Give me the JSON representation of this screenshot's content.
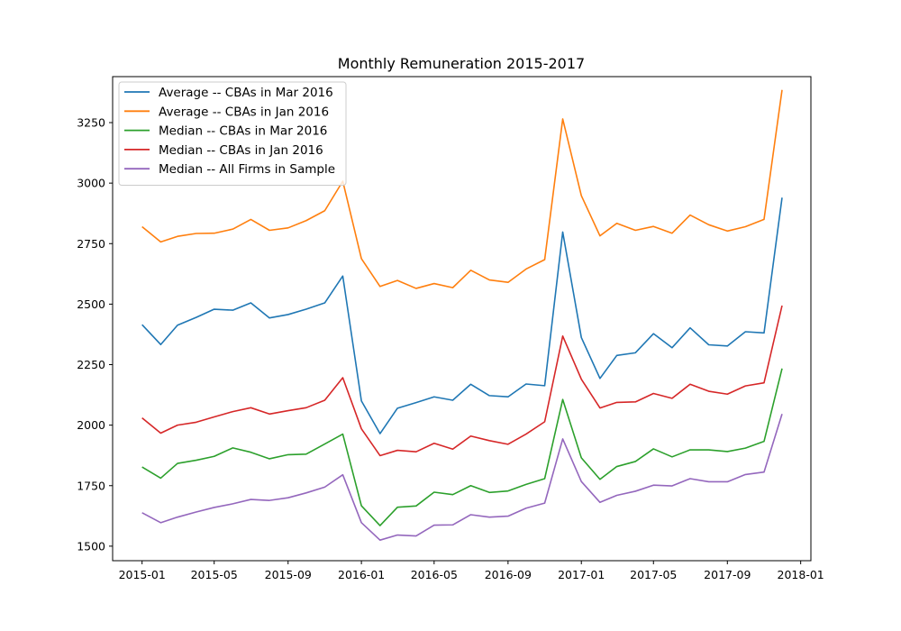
{
  "chart_data": {
    "type": "line",
    "title": "Monthly Remuneration 2015-2017",
    "xlabel": "",
    "ylabel": "",
    "x": [
      "2015-01",
      "2015-02",
      "2015-03",
      "2015-04",
      "2015-05",
      "2015-06",
      "2015-07",
      "2015-08",
      "2015-09",
      "2015-10",
      "2015-11",
      "2015-12",
      "2016-01",
      "2016-02",
      "2016-03",
      "2016-04",
      "2016-05",
      "2016-06",
      "2016-07",
      "2016-08",
      "2016-09",
      "2016-10",
      "2016-11",
      "2016-12",
      "2017-01",
      "2017-02",
      "2017-03",
      "2017-04",
      "2017-05",
      "2017-06",
      "2017-07",
      "2017-08",
      "2017-09",
      "2017-10",
      "2017-11",
      "2017-12"
    ],
    "xticks": [
      "2015-01",
      "2015-05",
      "2015-09",
      "2016-01",
      "2016-05",
      "2016-09",
      "2017-01",
      "2017-05",
      "2017-09",
      "2018-01"
    ],
    "xlim": [
      "2014-11-13",
      "2018-01-18"
    ],
    "ylim": [
      1440,
      3440
    ],
    "yticks": [
      1500,
      1750,
      2000,
      2250,
      2500,
      2750,
      3000,
      3250
    ],
    "grid": false,
    "legend_position": "upper-left",
    "series": [
      {
        "name": "Average -- CBAs in Mar 2016",
        "color": "#1f77b4",
        "values": [
          2415,
          2333,
          2413,
          2445,
          2479,
          2475,
          2505,
          2443,
          2457,
          2479,
          2505,
          2616,
          2100,
          1965,
          2070,
          2093,
          2117,
          2103,
          2169,
          2122,
          2117,
          2170,
          2163,
          2798,
          2362,
          2193,
          2288,
          2299,
          2378,
          2320,
          2402,
          2332,
          2327,
          2386,
          2381,
          2940
        ]
      },
      {
        "name": "Average -- CBAs in Jan 2016",
        "color": "#ff7f0e",
        "values": [
          2820,
          2757,
          2780,
          2792,
          2793,
          2810,
          2850,
          2805,
          2815,
          2845,
          2886,
          3008,
          2688,
          2573,
          2598,
          2565,
          2585,
          2568,
          2640,
          2600,
          2590,
          2645,
          2684,
          3265,
          2948,
          2782,
          2834,
          2805,
          2821,
          2793,
          2868,
          2828,
          2802,
          2820,
          2850,
          3385
        ]
      },
      {
        "name": "Median -- CBAs in Mar 2016",
        "color": "#2ca02c",
        "values": [
          1827,
          1781,
          1842,
          1855,
          1871,
          1906,
          1888,
          1861,
          1878,
          1880,
          1922,
          1963,
          1667,
          1585,
          1661,
          1666,
          1723,
          1713,
          1750,
          1722,
          1728,
          1755,
          1779,
          2106,
          1865,
          1776,
          1829,
          1850,
          1902,
          1869,
          1898,
          1898,
          1891,
          1905,
          1933,
          2234
        ]
      },
      {
        "name": "Median -- CBAs in Jan 2016",
        "color": "#d62728",
        "values": [
          2030,
          1967,
          2000,
          2012,
          2034,
          2056,
          2072,
          2046,
          2060,
          2072,
          2103,
          2196,
          1985,
          1874,
          1896,
          1890,
          1925,
          1901,
          1955,
          1936,
          1921,
          1963,
          2014,
          2368,
          2190,
          2071,
          2094,
          2096,
          2131,
          2111,
          2169,
          2140,
          2128,
          2162,
          2175,
          2494
        ]
      },
      {
        "name": "Median -- All Firms in Sample",
        "color": "#9467bd",
        "values": [
          1638,
          1597,
          1620,
          1641,
          1660,
          1675,
          1693,
          1689,
          1700,
          1720,
          1744,
          1795,
          1597,
          1525,
          1546,
          1542,
          1587,
          1588,
          1630,
          1620,
          1624,
          1657,
          1678,
          1943,
          1767,
          1681,
          1710,
          1727,
          1752,
          1749,
          1779,
          1766,
          1766,
          1796,
          1806,
          2046
        ]
      }
    ]
  }
}
